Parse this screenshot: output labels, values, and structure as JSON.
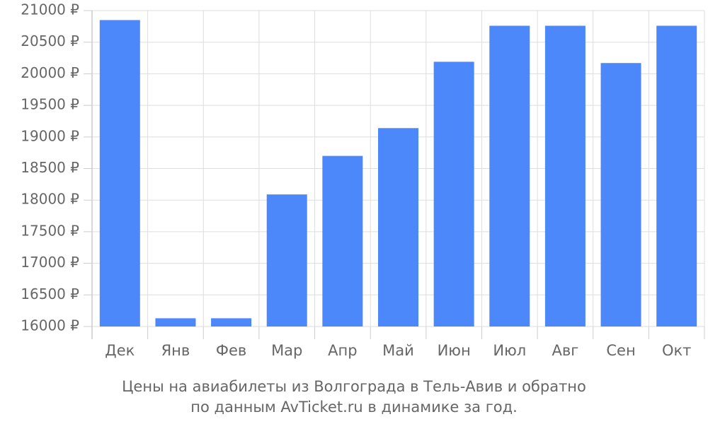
{
  "chart_data": {
    "type": "bar",
    "title": "Цены на авиабилеты из Волгограда в Тель-Авив и обратно",
    "subtitle": "по данным AvTicket.ru в динамике за год.",
    "categories": [
      "Дек",
      "Янв",
      "Фев",
      "Мар",
      "Апр",
      "Май",
      "Июн",
      "Июл",
      "Авг",
      "Сен",
      "Окт"
    ],
    "values": [
      20850,
      16130,
      16130,
      18090,
      18700,
      19140,
      20190,
      20760,
      20760,
      20170,
      20760
    ],
    "color": "#4d88fa",
    "ylim": [
      16000,
      21000
    ],
    "yticks": [
      {
        "value": 16000,
        "label": "16000 ₽"
      },
      {
        "value": 16500,
        "label": "16500 ₽"
      },
      {
        "value": 17000,
        "label": "17000 ₽"
      },
      {
        "value": 17500,
        "label": "17500 ₽"
      },
      {
        "value": 18000,
        "label": "18000 ₽"
      },
      {
        "value": 18500,
        "label": "18500 ₽"
      },
      {
        "value": 19000,
        "label": "19000 ₽"
      },
      {
        "value": 19500,
        "label": "19500 ₽"
      },
      {
        "value": 20000,
        "label": "20000 ₽"
      },
      {
        "value": 20500,
        "label": "20500 ₽"
      },
      {
        "value": 21000,
        "label": "21000 ₽"
      }
    ],
    "grid": true
  }
}
